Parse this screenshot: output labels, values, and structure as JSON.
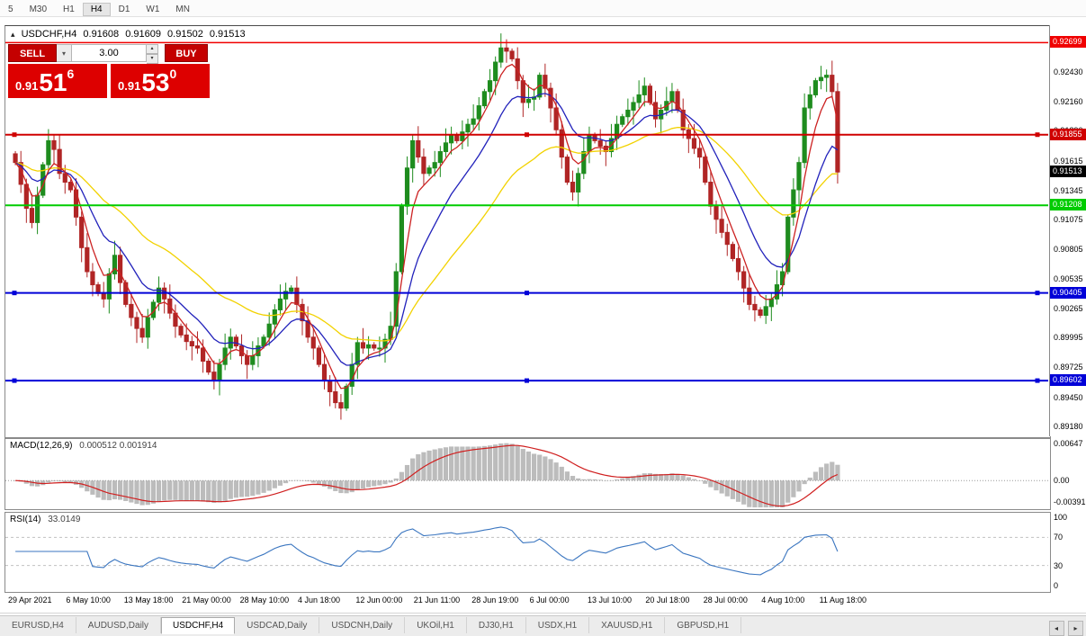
{
  "icons": {
    "chart_marker": "▴",
    "dropdown": "▾",
    "spin_up": "▴",
    "spin_down": "▾",
    "tab_scroll_left": "◂",
    "tab_scroll_right": "▸"
  },
  "toolbar": {
    "timeframes": [
      "5",
      "M30",
      "H1",
      "H4",
      "D1",
      "W1",
      "MN"
    ],
    "active": "H4"
  },
  "chart_header": {
    "symbol": "USDCHF,H4",
    "open": "0.91608",
    "high": "0.91609",
    "low": "0.91502",
    "close": "0.91513"
  },
  "trade_panel": {
    "sell_label": "SELL",
    "buy_label": "BUY",
    "volume": "3.00",
    "bid_small": "0.91",
    "bid_big": "51",
    "bid_sup": "6",
    "ask_small": "0.91",
    "ask_big": "53",
    "ask_sup": "0"
  },
  "indicators": {
    "macd_label": "MACD(12,26,9)",
    "macd_values": "0.000512 0.001914",
    "rsi_label": "RSI(14)",
    "rsi_value": "33.0149"
  },
  "axes": {
    "price_ticks": [
      0.9243,
      0.9216,
      0.9189,
      0.91615,
      0.91345,
      0.91075,
      0.90805,
      0.90535,
      0.90265,
      0.89995,
      0.89725,
      0.8945,
      0.8918
    ],
    "macd_ticks": [
      {
        "v": 0.00647,
        "label": "0.00647"
      },
      {
        "v": 0,
        "label": "0.00"
      },
      {
        "v": -0.00391,
        "label": "-0.00391"
      }
    ],
    "rsi_ticks": [
      {
        "v": 100,
        "label": "100"
      },
      {
        "v": 70,
        "label": "70"
      },
      {
        "v": 30,
        "label": "30"
      },
      {
        "v": 0,
        "label": "0"
      }
    ],
    "rsi_levels": [
      70,
      30
    ],
    "time_labels": [
      "29 Apr 2021",
      "6 May 10:00",
      "13 May 18:00",
      "21 May 00:00",
      "28 May 10:00",
      "4 Jun 18:00",
      "12 Jun 00:00",
      "21 Jun 11:00",
      "28 Jun 19:00",
      "6 Jul 00:00",
      "13 Jul 10:00",
      "20 Jul 18:00",
      "28 Jul 00:00",
      "4 Aug 10:00",
      "11 Aug 18:00"
    ]
  },
  "hlines": [
    {
      "price": 0.92699,
      "label": "0.92699",
      "color": "#f00000",
      "width": 1.5,
      "handles": false
    },
    {
      "price": 0.91855,
      "label": "0.91855",
      "color": "#d00000",
      "width": 2,
      "handles": true
    },
    {
      "price": 0.91208,
      "label": "0.91208",
      "color": "#00cc00",
      "width": 2,
      "handles": false
    },
    {
      "price": 0.90405,
      "label": "0.90405",
      "color": "#0000d8",
      "width": 2,
      "handles": true
    },
    {
      "price": 0.89602,
      "label": "0.89602",
      "color": "#0000d8",
      "width": 2,
      "handles": true
    }
  ],
  "current_price": {
    "value": 0.91513,
    "label": "0.91513",
    "bg": "#000000"
  },
  "tabs": [
    {
      "label": "EURUSD,H4",
      "active": false
    },
    {
      "label": "AUDUSD,Daily",
      "active": false
    },
    {
      "label": "USDCHF,H4",
      "active": true
    },
    {
      "label": "USDCAD,Daily",
      "active": false
    },
    {
      "label": "USDCNH,Daily",
      "active": false
    },
    {
      "label": "UKOil,H1",
      "active": false
    },
    {
      "label": "DJ30,H1",
      "active": false
    },
    {
      "label": "USDX,H1",
      "active": false
    },
    {
      "label": "XAUUSD,H1",
      "active": false
    },
    {
      "label": "GBPUSD,H1",
      "active": false
    }
  ],
  "chart_data": {
    "type": "candlestick",
    "symbol": "USDCHF",
    "timeframe": "H4",
    "title": "USDCHF,H4",
    "price_min": 0.891,
    "price_max": 0.9285,
    "first_open": 0.9168,
    "up_color": "#1e8c1e",
    "down_color": "#b02525",
    "ma_lines": [
      {
        "period": 5,
        "color": "#cc2222"
      },
      {
        "period": 13,
        "color": "#2222bb"
      },
      {
        "period": 34,
        "color": "#f2d200"
      }
    ],
    "macd": {
      "fast": 12,
      "slow": 26,
      "signal": 9,
      "hist_color": "#bcbcbc",
      "signal_color": "#d02020"
    },
    "rsi": {
      "period": 14,
      "color": "#3b76c0"
    },
    "closes": [
      0.916,
      0.914,
      0.9118,
      0.9105,
      0.913,
      0.9158,
      0.918,
      0.9172,
      0.915,
      0.9142,
      0.9135,
      0.911,
      0.9082,
      0.906,
      0.9048,
      0.904,
      0.9035,
      0.9058,
      0.9075,
      0.905,
      0.903,
      0.9018,
      0.9008,
      0.9,
      0.9018,
      0.9032,
      0.9045,
      0.9035,
      0.9022,
      0.901,
      0.9002,
      0.8996,
      0.8992,
      0.899,
      0.8978,
      0.8968,
      0.896,
      0.8975,
      0.899,
      0.9,
      0.8992,
      0.8983,
      0.8975,
      0.8983,
      0.8992,
      0.9,
      0.9012,
      0.9025,
      0.9035,
      0.9042,
      0.9045,
      0.903,
      0.9015,
      0.9,
      0.899,
      0.8975,
      0.896,
      0.895,
      0.894,
      0.8935,
      0.8955,
      0.8975,
      0.8995,
      0.899,
      0.8993,
      0.899,
      0.899,
      0.8998,
      0.901,
      0.906,
      0.912,
      0.9155,
      0.918,
      0.9165,
      0.915,
      0.9155,
      0.916,
      0.917,
      0.9178,
      0.9185,
      0.918,
      0.9188,
      0.9195,
      0.92,
      0.9212,
      0.9225,
      0.9235,
      0.9252,
      0.9265,
      0.9262,
      0.9255,
      0.9235,
      0.9215,
      0.9218,
      0.922,
      0.924,
      0.9228,
      0.921,
      0.919,
      0.9165,
      0.9142,
      0.9133,
      0.915,
      0.917,
      0.9185,
      0.918,
      0.9175,
      0.917,
      0.9182,
      0.9195,
      0.9202,
      0.9208,
      0.9215,
      0.9222,
      0.923,
      0.9215,
      0.92,
      0.9208,
      0.9216,
      0.9225,
      0.9208,
      0.919,
      0.9182,
      0.9173,
      0.9165,
      0.9142,
      0.912,
      0.9108,
      0.9096,
      0.9085,
      0.9072,
      0.906,
      0.9045,
      0.903,
      0.9025,
      0.902,
      0.9028,
      0.9035,
      0.9048,
      0.906,
      0.911,
      0.9135,
      0.916,
      0.921,
      0.9222,
      0.9235,
      0.9238,
      0.924,
      0.9225,
      0.91513
    ]
  }
}
